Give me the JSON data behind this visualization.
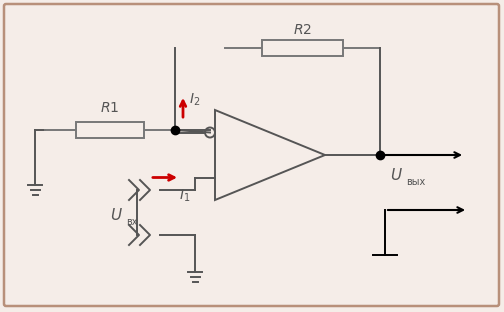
{
  "bg_color": "#f5ede8",
  "border_color": "#b8907a",
  "line_color": "#555555",
  "red_color": "#cc0000",
  "resistor_color": "#777777",
  "dot_color": "#000000",
  "figsize": [
    5.04,
    3.12
  ],
  "dpi": 100
}
